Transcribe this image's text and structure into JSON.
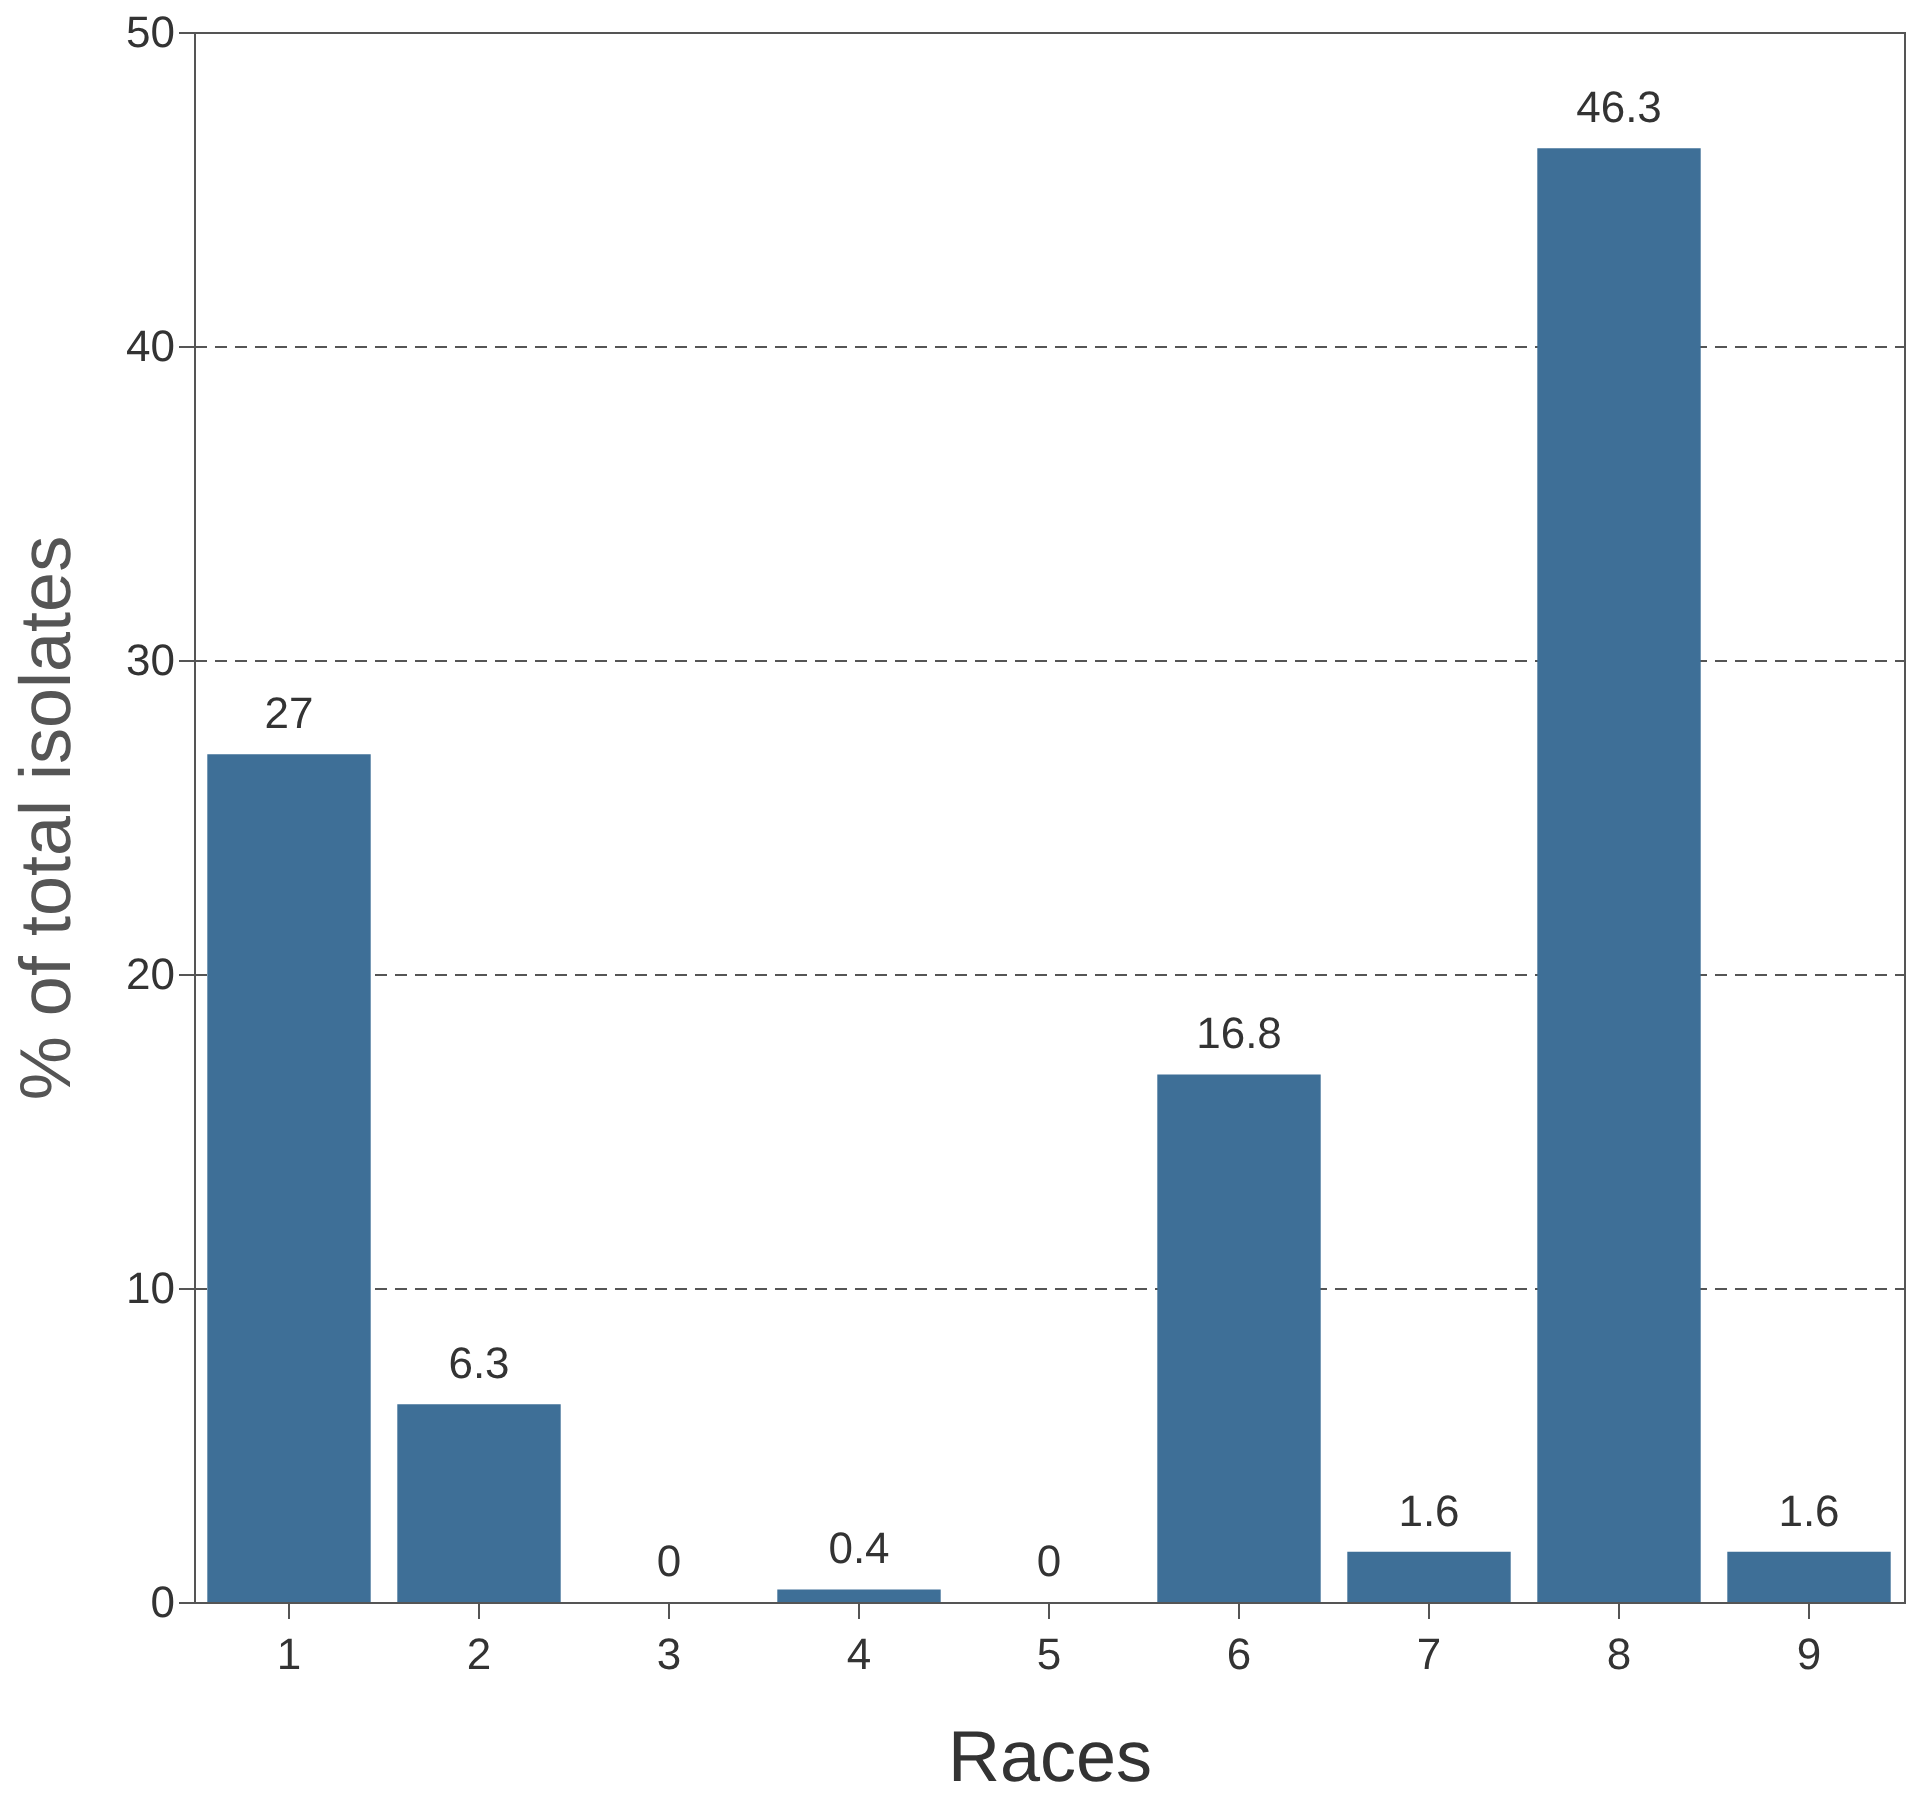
{
  "chart_data": {
    "type": "bar",
    "xlabel": "Races",
    "ylabel": "% of total isolates",
    "categories": [
      "1",
      "2",
      "3",
      "4",
      "5",
      "6",
      "7",
      "8",
      "9"
    ],
    "values": [
      27,
      6.3,
      0,
      0.4,
      0,
      16.8,
      1.6,
      46.3,
      1.6
    ],
    "color": "#3e6f97",
    "ylim": [
      0,
      50
    ],
    "yticks": [
      0,
      10,
      20,
      30,
      40,
      50
    ],
    "grid": "y",
    "data_labels": true
  }
}
